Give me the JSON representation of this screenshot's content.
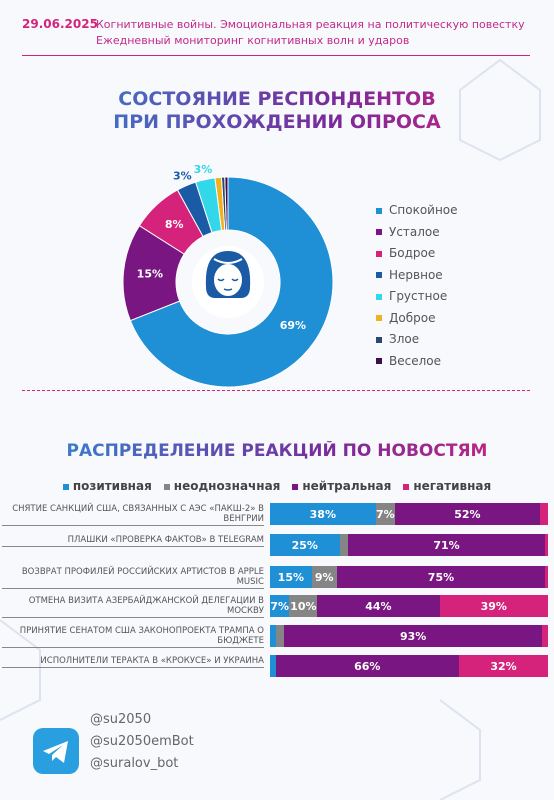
{
  "header": {
    "date": "29.06.2025",
    "line1": "Когнитивные войны. Эмоциональная реакция на политическую повестку",
    "line2": "Ежедневный мониторинг когнитивных волн и ударов"
  },
  "chart_data": [
    {
      "type": "donut",
      "title": [
        "СОСТОЯНИЕ РЕСПОНДЕНТОВ",
        "ПРИ ПРОХОЖДЕНИИ ОПРОСА"
      ],
      "categories": [
        "Спокойное",
        "Усталое",
        "Бодрое",
        "Нервное",
        "Грустное",
        "Доброе",
        "Злое",
        "Веселое"
      ],
      "values": [
        69,
        15,
        8,
        3,
        3,
        1,
        0.5,
        0.5
      ],
      "value_labels": [
        "69%",
        "15%",
        "8%",
        "3%",
        "3%",
        null,
        null,
        null
      ],
      "colors": [
        "#1f8fd6",
        "#7a1681",
        "#d5237c",
        "#1b5ba6",
        "#33d7ea",
        "#f0b020",
        "#2b4a6b",
        "#3c0f4b"
      ]
    },
    {
      "type": "stacked-bar",
      "title": "РАСПРЕДЕЛЕНИЕ РЕАКЦИЙ ПО НОВОСТЯМ",
      "categories": [
        "СНЯТИЕ САНКЦИЙ США, СВЯЗАННЫХ С АЭС «ПАКШ-2» В ВЕНГРИИ",
        "ПЛАШКИ «ПРОВЕРКА ФАКТОВ» В TELEGRAM",
        "ВОЗВРАТ ПРОФИЛЕЙ РОССИЙСКИХ АРТИСТОВ В APPLE MUSIC",
        "ОТМЕНА ВИЗИТА АЗЕРБАЙДЖАНСКОЙ ДЕЛЕГАЦИИ В МОСКВУ",
        "ПРИНЯТИЕ СЕНАТОМ США ЗАКОНОПРОЕКТА ТРАМПА О БЮДЖЕТЕ",
        "ИСПОЛНИТЕЛИ ТЕРАКТА В «КРОКУСЕ» И УКРАИНА"
      ],
      "series": [
        {
          "name": "позитивная",
          "color": "#1f8fd6",
          "values": [
            38,
            25,
            15,
            7,
            2,
            2
          ],
          "value_labels": [
            "38%",
            "25%",
            "15%",
            "7%",
            null,
            null
          ]
        },
        {
          "name": "неоднозначная",
          "color": "#858585",
          "values": [
            7,
            3,
            9,
            10,
            3,
            0
          ],
          "value_labels": [
            "7%",
            null,
            "9%",
            "10%",
            null,
            null
          ]
        },
        {
          "name": "нейтральная",
          "color": "#7a1681",
          "values": [
            52,
            71,
            75,
            44,
            93,
            66
          ],
          "value_labels": [
            "52%",
            "71%",
            "75%",
            "44%",
            "93%",
            "66%"
          ]
        },
        {
          "name": "негативная",
          "color": "#d5237c",
          "values": [
            3,
            1,
            1,
            39,
            2,
            32
          ],
          "value_labels": [
            null,
            null,
            null,
            "39%",
            null,
            "32%"
          ]
        }
      ]
    }
  ],
  "footer": {
    "links": [
      "@su2050",
      "@su2050emBot",
      "@suralov_bot"
    ]
  }
}
